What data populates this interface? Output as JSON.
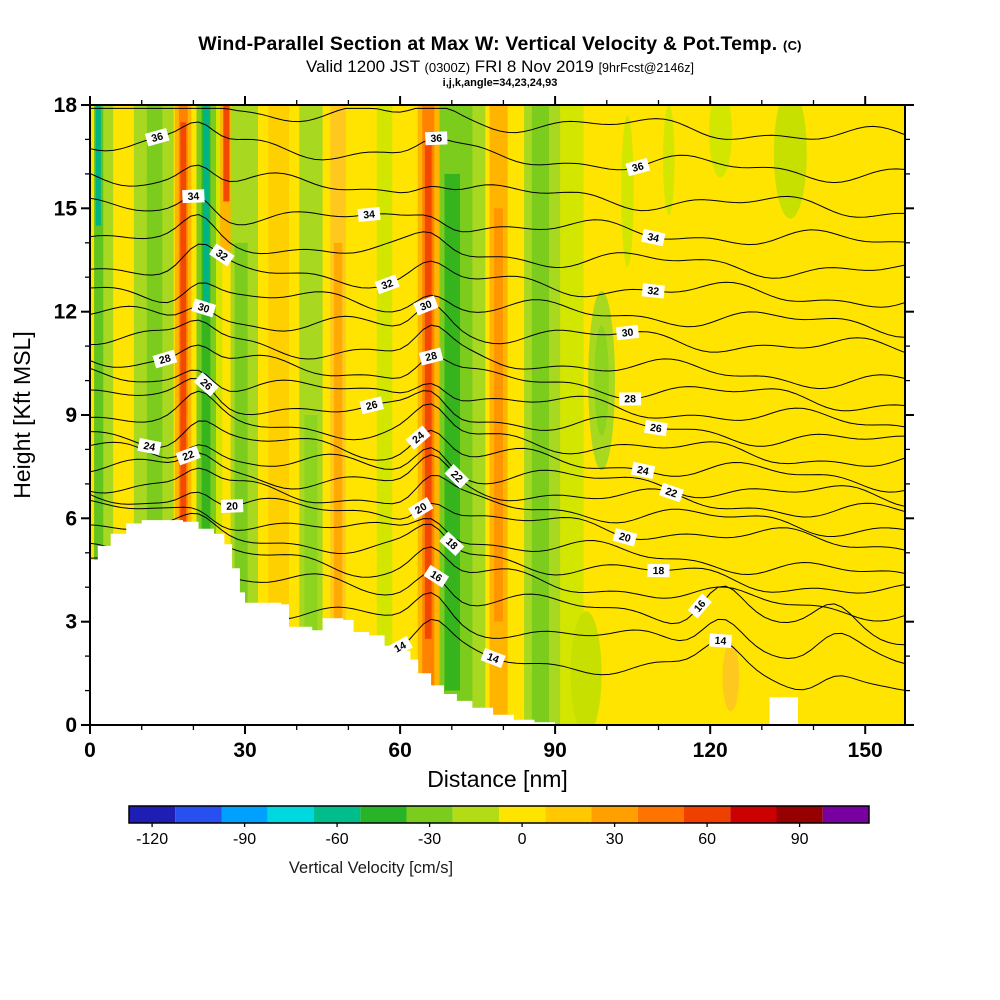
{
  "header": {
    "title": "Wind-Parallel Section at Max W: Vertical Velocity & Pot.Temp.",
    "title_suffix": "(C)",
    "subtitle_pre": "Valid 1200 JST",
    "subtitle_z": "(0300Z)",
    "subtitle_date": "FRI 8 Nov 2019",
    "subtitle_fcst": "[9hrFcst@2146z]",
    "meta": "i,j,k,angle=34,23,24,93"
  },
  "chart_data": {
    "type": "heatmap",
    "title": "Wind-Parallel Section at Max W: Vertical Velocity & Pot.Temp. (C)",
    "xlabel": "Distance [nm]",
    "ylabel": "Height [Kft MSL]",
    "xlim": [
      0,
      157.7
    ],
    "ylim": [
      0,
      18
    ],
    "x_ticks": [
      0,
      30,
      60,
      90,
      120,
      150
    ],
    "y_ticks": [
      0,
      3,
      6,
      9,
      12,
      15,
      18
    ],
    "x_minor_step": 10,
    "y_minor_step": 1,
    "background": "#ffe400",
    "contour_interval": 1,
    "contour_levels": [
      [
        14,
        2.6
      ],
      [
        15,
        3.45
      ],
      [
        16,
        4.25
      ],
      [
        17,
        4.9
      ],
      [
        18,
        5.45
      ],
      [
        19,
        5.92
      ],
      [
        20,
        6.35
      ],
      [
        21,
        6.8
      ],
      [
        22,
        7.25
      ],
      [
        23,
        7.7
      ],
      [
        24,
        8.2
      ],
      [
        25,
        8.75
      ],
      [
        26,
        9.3
      ],
      [
        27,
        9.85
      ],
      [
        28,
        10.45
      ],
      [
        29,
        11.05
      ],
      [
        30,
        11.7
      ],
      [
        31,
        12.4
      ],
      [
        32,
        13.15
      ],
      [
        33,
        13.95
      ],
      [
        34,
        14.8
      ],
      [
        35,
        15.75
      ],
      [
        36,
        16.8
      ],
      [
        37,
        17.85
      ]
    ],
    "contour_labels": [
      {
        "t": 36,
        "x": 13
      },
      {
        "t": 36,
        "x": 67
      },
      {
        "t": 36,
        "x": 106
      },
      {
        "t": 34,
        "x": 20
      },
      {
        "t": 34,
        "x": 54
      },
      {
        "t": 34,
        "x": 109
      },
      {
        "t": 32,
        "x": 25.5
      },
      {
        "t": 32,
        "x": 57.5
      },
      {
        "t": 32,
        "x": 109
      },
      {
        "t": 30,
        "x": 22
      },
      {
        "t": 30,
        "x": 65
      },
      {
        "t": 30,
        "x": 104
      },
      {
        "t": 28,
        "x": 14.5
      },
      {
        "t": 28,
        "x": 66
      },
      {
        "t": 28,
        "x": 104.5
      },
      {
        "t": 26,
        "x": 22.5
      },
      {
        "t": 26,
        "x": 54.5
      },
      {
        "t": 26,
        "x": 109.5
      },
      {
        "t": 24,
        "x": 11.5
      },
      {
        "t": 24,
        "x": 63.5
      },
      {
        "t": 24,
        "x": 107
      },
      {
        "t": 22,
        "x": 19
      },
      {
        "t": 22,
        "x": 71
      },
      {
        "t": 22,
        "x": 112.5
      },
      {
        "t": 20,
        "x": 27.5
      },
      {
        "t": 20,
        "x": 64
      },
      {
        "t": 20,
        "x": 103.5
      },
      {
        "t": 18,
        "x": 70
      },
      {
        "t": 18,
        "x": 110
      },
      {
        "t": 16,
        "x": 67
      },
      {
        "t": 16,
        "x": 118
      },
      {
        "t": 14,
        "x": 60
      },
      {
        "t": 14,
        "x": 78
      },
      {
        "t": 14,
        "x": 122
      }
    ],
    "bands": [
      {
        "x0": 0.8,
        "x1": 2.6,
        "color": "#62c41e"
      },
      {
        "x0": 1.1,
        "x1": 2.1,
        "color": "#00b487",
        "y0": 14.5,
        "y1": 18
      },
      {
        "x0": 2.6,
        "x1": 4.5,
        "color": "#a8d820"
      },
      {
        "x0": 8.5,
        "x1": 16.2,
        "color": "#a8d820"
      },
      {
        "x0": 11,
        "x1": 14,
        "color": "#7ccc1e"
      },
      {
        "x0": 16.4,
        "x1": 19.6,
        "color": "#ffb400"
      },
      {
        "x0": 17.2,
        "x1": 18.9,
        "color": "#ff8200"
      },
      {
        "x0": 17.5,
        "x1": 18.6,
        "color": "#f24800",
        "y0": 5.5,
        "y1": 17.5
      },
      {
        "x0": 20.6,
        "x1": 24.4,
        "color": "#7ccc1e"
      },
      {
        "x0": 21.6,
        "x1": 23.3,
        "color": "#35b41e"
      },
      {
        "x0": 22.0,
        "x1": 23.0,
        "color": "#00b487",
        "y0": 12,
        "y1": 18
      },
      {
        "x0": 24.4,
        "x1": 25.6,
        "color": "#d2e600"
      },
      {
        "x0": 25.2,
        "x1": 27.8,
        "color": "#ffb400",
        "y0": 13.5,
        "y1": 18
      },
      {
        "x0": 25.8,
        "x1": 27.0,
        "color": "#f24800",
        "y0": 15.2,
        "y1": 18
      },
      {
        "x0": 27.2,
        "x1": 32.5,
        "color": "#a8d820"
      },
      {
        "x0": 28.0,
        "x1": 30.5,
        "color": "#7ccc1e",
        "y0": 0,
        "y1": 14
      },
      {
        "x0": 34.5,
        "x1": 38.5,
        "color": "#ffd000"
      },
      {
        "x0": 40.5,
        "x1": 45.0,
        "color": "#a8d820"
      },
      {
        "x0": 41.5,
        "x1": 44.0,
        "color": "#8cd41e",
        "y0": 0,
        "y1": 9
      },
      {
        "x0": 46.5,
        "x1": 49.5,
        "color": "#ffc81e"
      },
      {
        "x0": 47.2,
        "x1": 48.8,
        "color": "#ffaa00",
        "y0": 2,
        "y1": 14
      },
      {
        "x0": 55.5,
        "x1": 58.5,
        "color": "#d2e600"
      },
      {
        "x0": 63.4,
        "x1": 67.6,
        "color": "#ffb400"
      },
      {
        "x0": 64.3,
        "x1": 66.6,
        "color": "#ff8200"
      },
      {
        "x0": 64.8,
        "x1": 66.1,
        "color": "#f24800",
        "y0": 2.5,
        "y1": 17
      },
      {
        "x0": 67.6,
        "x1": 74.0,
        "color": "#7ccc1e"
      },
      {
        "x0": 68.6,
        "x1": 71.6,
        "color": "#35b41e",
        "y0": 1,
        "y1": 16
      },
      {
        "x0": 74.0,
        "x1": 76.5,
        "color": "#a8d820"
      },
      {
        "x0": 77.3,
        "x1": 80.8,
        "color": "#ffb400"
      },
      {
        "x0": 78.2,
        "x1": 79.9,
        "color": "#ff9600",
        "y0": 3,
        "y1": 15
      },
      {
        "x0": 84.0,
        "x1": 91.0,
        "color": "#a8d820"
      },
      {
        "x0": 85.5,
        "x1": 88.8,
        "color": "#7ccc1e"
      },
      {
        "x0": 91.0,
        "x1": 95.5,
        "color": "#d2e600"
      }
    ],
    "blobs": [
      {
        "cx": 99,
        "cy": 10,
        "rx": 2.6,
        "ry": 2.6,
        "color": "#a8d820"
      },
      {
        "cx": 99,
        "cy": 10,
        "rx": 1.4,
        "ry": 1.6,
        "color": "#8cd41e"
      },
      {
        "cx": 104,
        "cy": 15.5,
        "rx": 1.2,
        "ry": 2.2,
        "color": "#d2e600"
      },
      {
        "cx": 112,
        "cy": 16.4,
        "rx": 1.1,
        "ry": 1.6,
        "color": "#d2e600"
      },
      {
        "cx": 122,
        "cy": 17.2,
        "rx": 2.2,
        "ry": 1.3,
        "color": "#d2e600"
      },
      {
        "cx": 135.5,
        "cy": 16.6,
        "rx": 3.2,
        "ry": 1.9,
        "color": "#c8e000"
      },
      {
        "cx": 96,
        "cy": 1.5,
        "rx": 3,
        "ry": 1.8,
        "color": "#c8e000"
      },
      {
        "cx": 124,
        "cy": 1.4,
        "rx": 1.6,
        "ry": 1.0,
        "color": "#ffc81e"
      }
    ],
    "terrain": [
      [
        0,
        4.8
      ],
      [
        1.5,
        5.2
      ],
      [
        4,
        5.55
      ],
      [
        7,
        5.85
      ],
      [
        10,
        5.95
      ],
      [
        18,
        5.9
      ],
      [
        21,
        5.7
      ],
      [
        24,
        5.55
      ],
      [
        26,
        5.25
      ],
      [
        27.5,
        4.55
      ],
      [
        29,
        3.85
      ],
      [
        30,
        3.55
      ],
      [
        37,
        3.5
      ],
      [
        38.5,
        2.85
      ],
      [
        43,
        2.75
      ],
      [
        45,
        3.1
      ],
      [
        49,
        3.05
      ],
      [
        51,
        2.7
      ],
      [
        54,
        2.6
      ],
      [
        57,
        2.3
      ],
      [
        60,
        2.15
      ],
      [
        62,
        1.9
      ],
      [
        63.5,
        1.5
      ],
      [
        66,
        1.15
      ],
      [
        68.5,
        0.9
      ],
      [
        71,
        0.7
      ],
      [
        74,
        0.5
      ],
      [
        78,
        0.3
      ],
      [
        82,
        0.15
      ],
      [
        86,
        0.08
      ],
      [
        90,
        0
      ]
    ],
    "terrain_notch": {
      "x0": 131.5,
      "x1": 137,
      "h": 0.8
    },
    "colorbar": {
      "label": "Vertical Velocity [cm/s]",
      "vmin": -127.5,
      "vmax": 112.5,
      "tick_values": [
        -120,
        -90,
        -60,
        -30,
        0,
        30,
        60,
        90
      ],
      "colors": [
        "#1e1eb4",
        "#2850f0",
        "#00a0ff",
        "#00d8e0",
        "#00be8c",
        "#28b428",
        "#7ccc1e",
        "#b4dc14",
        "#ffe400",
        "#ffc800",
        "#ffa000",
        "#ff7300",
        "#f04000",
        "#cd0000",
        "#960000",
        "#7800a0"
      ]
    }
  }
}
